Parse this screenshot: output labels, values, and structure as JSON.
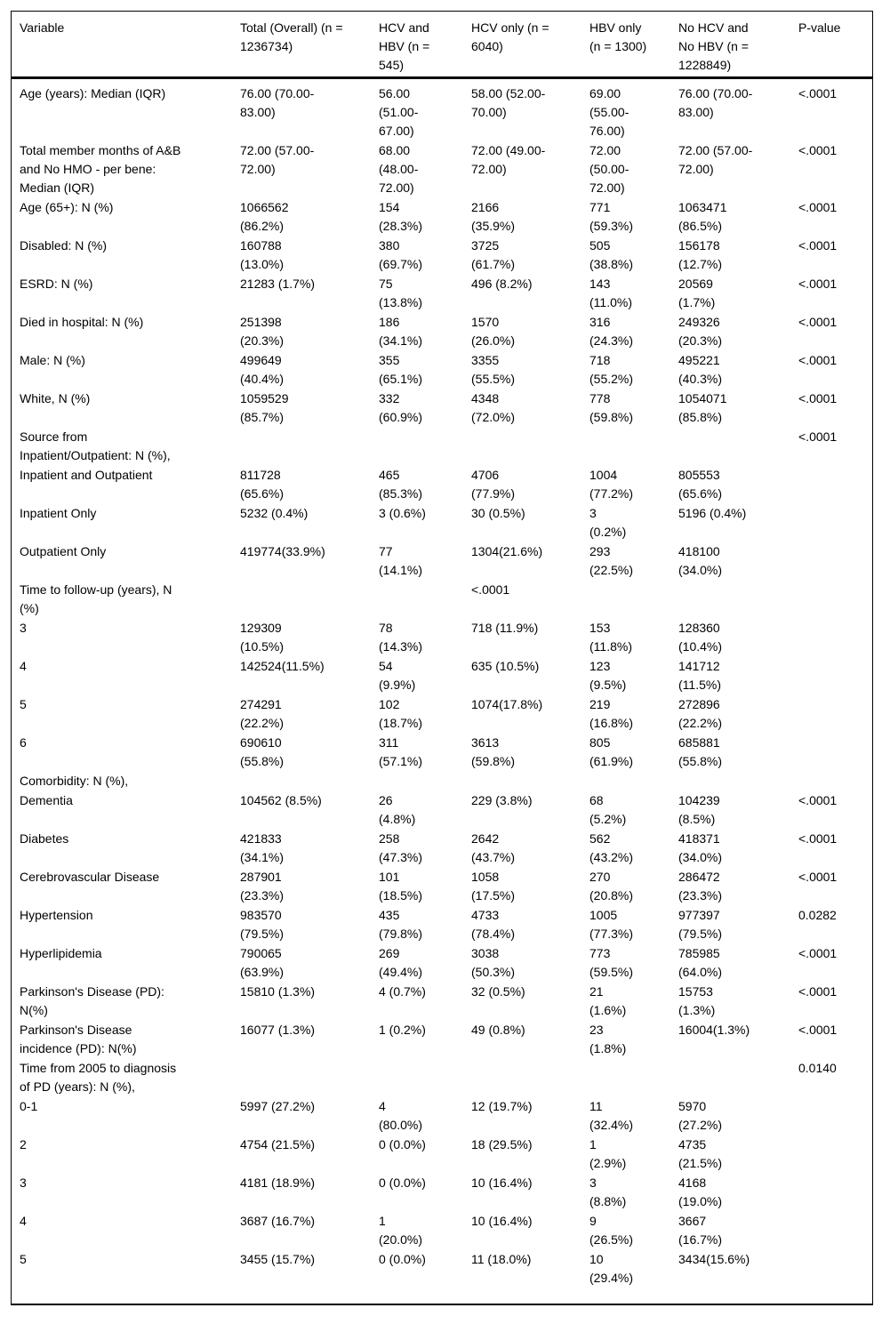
{
  "table": {
    "columns": [
      "Variable",
      "Total (Overall) (n =\n1236734)",
      "HCV and\nHBV (n =\n545)",
      "HCV only (n =\n6040)",
      "HBV only\n(n = 1300)",
      "No HCV and\nNo HBV (n =\n1228849)",
      "P-value"
    ],
    "rows": [
      [
        "Age (years): Median (IQR)",
        "76.00 (70.00-\n83.00)",
        "56.00\n(51.00-\n67.00)",
        "58.00 (52.00-\n70.00)",
        "69.00\n(55.00-\n76.00)",
        "76.00 (70.00-\n83.00)",
        "<.0001"
      ],
      [
        "Total member months of A&B\nand No HMO - per bene:\nMedian (IQR)",
        "72.00 (57.00-\n72.00)",
        "68.00\n(48.00-\n72.00)",
        "72.00 (49.00-\n72.00)",
        "72.00\n(50.00-\n72.00)",
        "72.00 (57.00-\n72.00)",
        "<.0001"
      ],
      [
        "Age (65+): N (%)",
        "1066562\n(86.2%)",
        "154\n(28.3%)",
        "2166\n(35.9%)",
        "771\n(59.3%)",
        "1063471\n(86.5%)",
        "<.0001"
      ],
      [
        "Disabled: N (%)",
        "160788\n(13.0%)",
        "380\n(69.7%)",
        "3725\n(61.7%)",
        "505\n(38.8%)",
        "156178\n(12.7%)",
        "<.0001"
      ],
      [
        "ESRD: N (%)",
        "21283 (1.7%)",
        "75\n(13.8%)",
        "496 (8.2%)",
        "143\n(11.0%)",
        "20569\n(1.7%)",
        "<.0001"
      ],
      [
        "Died in hospital: N (%)",
        "251398\n(20.3%)",
        "186\n(34.1%)",
        "1570\n(26.0%)",
        "316\n(24.3%)",
        "249326\n(20.3%)",
        "<.0001"
      ],
      [
        "Male: N (%)",
        "499649\n(40.4%)",
        "355\n(65.1%)",
        "3355\n(55.5%)",
        "718\n(55.2%)",
        "495221\n(40.3%)",
        "<.0001"
      ],
      [
        "White, N (%)",
        "1059529\n(85.7%)",
        "332\n(60.9%)",
        "4348\n(72.0%)",
        "778\n(59.8%)",
        "1054071\n(85.8%)",
        "<.0001"
      ],
      [
        "Source from\nInpatient/Outpatient: N (%),",
        "",
        "",
        "",
        "",
        "",
        "<.0001"
      ],
      [
        "Inpatient and Outpatient",
        "811728\n(65.6%)",
        "465\n(85.3%)",
        "4706\n(77.9%)",
        "1004\n(77.2%)",
        "805553\n(65.6%)",
        ""
      ],
      [
        "Inpatient Only",
        "5232 (0.4%)",
        "3 (0.6%)",
        "30 (0.5%)",
        "3\n(0.2%)",
        "5196 (0.4%)",
        ""
      ],
      [
        "Outpatient Only",
        "419774(33.9%)",
        "77\n(14.1%)",
        "1304(21.6%)",
        "293\n(22.5%)",
        "418100\n(34.0%)",
        ""
      ],
      [
        "Time to follow-up (years), N\n(%)",
        "",
        "",
        "<.0001",
        "",
        "",
        ""
      ],
      [
        "3",
        "129309\n(10.5%)",
        "78\n(14.3%)",
        "718 (11.9%)",
        "153\n(11.8%)",
        "128360\n(10.4%)",
        ""
      ],
      [
        "4",
        "142524(11.5%)",
        "54\n(9.9%)",
        "635 (10.5%)",
        "123\n(9.5%)",
        "141712\n(11.5%)",
        ""
      ],
      [
        "5",
        "274291\n(22.2%)",
        "102\n(18.7%)",
        "1074(17.8%)",
        "219\n(16.8%)",
        "272896\n(22.2%)",
        ""
      ],
      [
        "6",
        "690610\n(55.8%)",
        "311\n(57.1%)",
        "3613\n(59.8%)",
        "805\n(61.9%)",
        "685881\n(55.8%)",
        ""
      ],
      [
        "Comorbidity: N (%),",
        "",
        "",
        "",
        "",
        "",
        ""
      ],
      [
        "Dementia",
        "104562 (8.5%)",
        "26\n(4.8%)",
        "229 (3.8%)",
        "68\n(5.2%)",
        "104239\n(8.5%)",
        "<.0001"
      ],
      [
        "Diabetes",
        "421833\n(34.1%)",
        "258\n(47.3%)",
        "2642\n(43.7%)",
        "562\n(43.2%)",
        "418371\n(34.0%)",
        "<.0001"
      ],
      [
        "Cerebrovascular Disease",
        "287901\n(23.3%)",
        "101\n(18.5%)",
        "1058\n(17.5%)",
        "270\n(20.8%)",
        "286472\n(23.3%)",
        "<.0001"
      ],
      [
        "Hypertension",
        "983570\n(79.5%)",
        "435\n(79.8%)",
        "4733\n(78.4%)",
        "1005\n(77.3%)",
        "977397\n(79.5%)",
        "0.0282"
      ],
      [
        "Hyperlipidemia",
        "790065\n(63.9%)",
        "269\n(49.4%)",
        "3038\n(50.3%)",
        "773\n(59.5%)",
        "785985\n(64.0%)",
        "<.0001"
      ],
      [
        "Parkinson's Disease (PD):\nN(%)",
        "15810 (1.3%)",
        "4 (0.7%)",
        "32 (0.5%)",
        "21\n(1.6%)",
        "15753\n(1.3%)",
        "<.0001"
      ],
      [
        "Parkinson's Disease\nincidence (PD): N(%)",
        "16077 (1.3%)",
        "1 (0.2%)",
        "49 (0.8%)",
        "23\n(1.8%)",
        "16004(1.3%)",
        "<.0001"
      ],
      [
        "Time from 2005 to diagnosis\nof PD (years): N (%),",
        "",
        "",
        "",
        "",
        "",
        "0.0140"
      ],
      [
        "0-1",
        "5997 (27.2%)",
        "4\n(80.0%)",
        "12 (19.7%)",
        "11\n(32.4%)",
        "5970\n(27.2%)",
        ""
      ],
      [
        "2",
        "4754 (21.5%)",
        "0 (0.0%)",
        "18 (29.5%)",
        "1\n(2.9%)",
        "4735\n(21.5%)",
        ""
      ],
      [
        "3",
        "4181 (18.9%)",
        "0 (0.0%)",
        "10 (16.4%)",
        "3\n(8.8%)",
        "4168\n(19.0%)",
        ""
      ],
      [
        "4",
        "3687 (16.7%)",
        "1\n(20.0%)",
        "10 (16.4%)",
        "9\n(26.5%)",
        "3667\n(16.7%)",
        ""
      ],
      [
        "5",
        "3455 (15.7%)",
        "0 (0.0%)",
        "11 (18.0%)",
        "10\n(29.4%)",
        "3434(15.6%)",
        ""
      ]
    ]
  }
}
